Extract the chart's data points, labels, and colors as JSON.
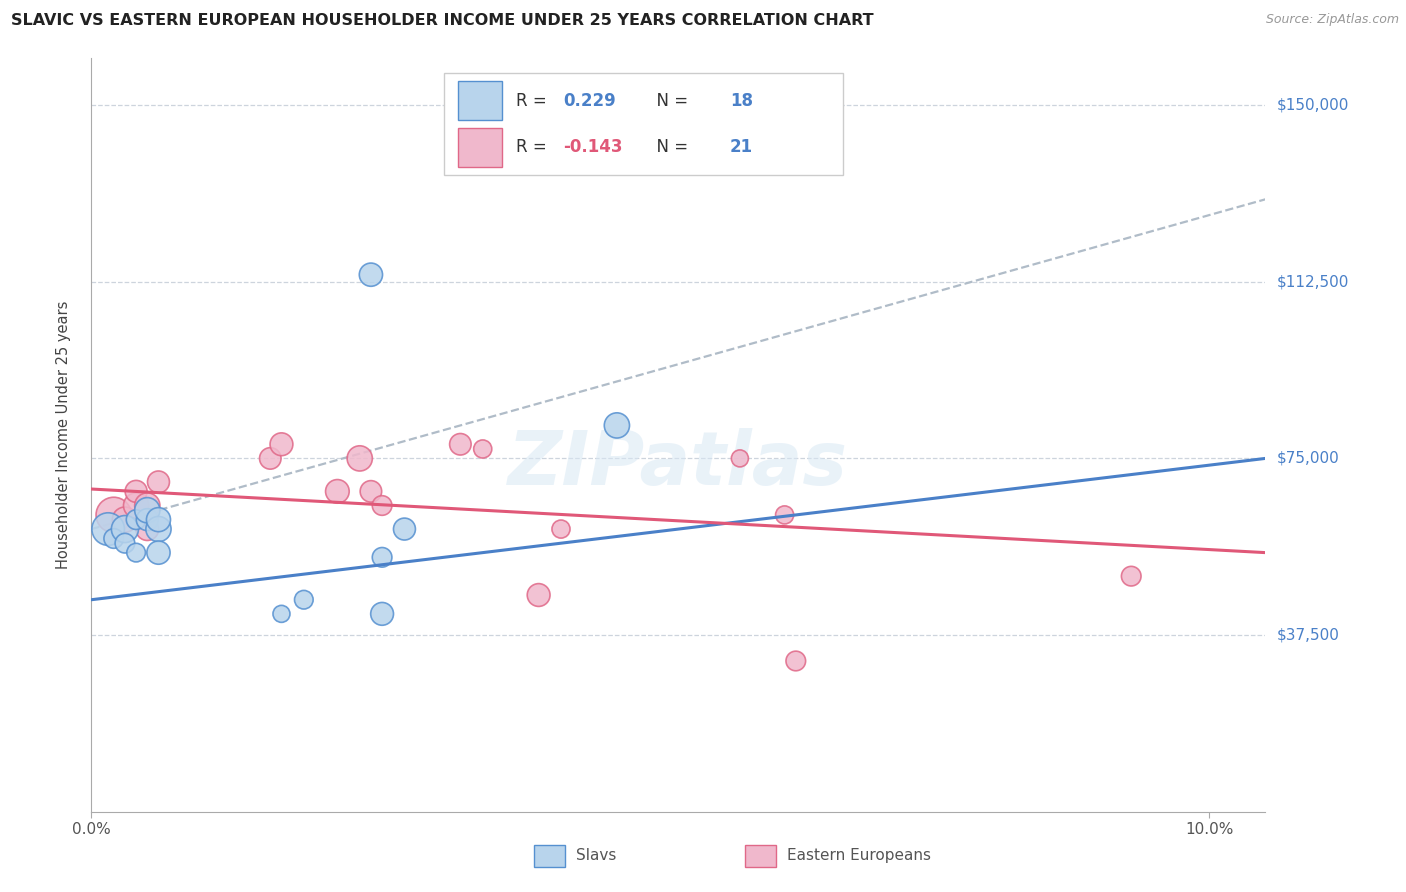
{
  "title": "SLAVIC VS EASTERN EUROPEAN HOUSEHOLDER INCOME UNDER 25 YEARS CORRELATION CHART",
  "source": "Source: ZipAtlas.com",
  "ylabel": "Householder Income Under 25 years",
  "xlim": [
    0.0,
    0.105
  ],
  "ylim": [
    0,
    160000
  ],
  "xtick_positions": [
    0.0,
    0.1
  ],
  "xtick_labels": [
    "0.0%",
    "10.0%"
  ],
  "ytick_values": [
    37500,
    75000,
    112500,
    150000
  ],
  "ytick_labels": [
    "$37,500",
    "$75,000",
    "$112,500",
    "$150,000"
  ],
  "r_slavs_val": "0.229",
  "n_slavs_val": "18",
  "r_eastern_val": "-0.143",
  "n_eastern_val": "21",
  "slavs_fill": "#b8d4ec",
  "slavs_edge": "#5590d0",
  "eastern_fill": "#f0b8cc",
  "eastern_edge": "#e06888",
  "slavs_line_color": "#4a80c8",
  "eastern_line_color": "#e05878",
  "dashed_line_color": "#b0bcc8",
  "watermark_color": "#d8e8f4",
  "slavs_line_x0": 0.0,
  "slavs_line_x1": 0.105,
  "slavs_line_y0": 45000,
  "slavs_line_y1": 75000,
  "eastern_line_x0": 0.0,
  "eastern_line_x1": 0.105,
  "eastern_line_y0": 68500,
  "eastern_line_y1": 55000,
  "dashed_line_x0": 0.0,
  "dashed_line_x1": 0.105,
  "dashed_line_y0": 60000,
  "dashed_line_y1": 130000,
  "slavs_x": [
    0.0015,
    0.002,
    0.003,
    0.003,
    0.004,
    0.004,
    0.005,
    0.005,
    0.006,
    0.006,
    0.006,
    0.017,
    0.019,
    0.025,
    0.026,
    0.026,
    0.028,
    0.047
  ],
  "slavs_y": [
    60000,
    58000,
    60000,
    57000,
    62000,
    55000,
    62000,
    64000,
    60000,
    62000,
    55000,
    42000,
    45000,
    114000,
    54000,
    42000,
    60000,
    82000
  ],
  "slavs_sizes": [
    550,
    200,
    380,
    200,
    200,
    180,
    250,
    330,
    330,
    300,
    280,
    150,
    180,
    280,
    200,
    270,
    250,
    330
  ],
  "eastern_x": [
    0.002,
    0.003,
    0.004,
    0.004,
    0.005,
    0.005,
    0.006,
    0.016,
    0.017,
    0.022,
    0.024,
    0.025,
    0.026,
    0.033,
    0.035,
    0.04,
    0.042,
    0.058,
    0.062,
    0.063,
    0.093
  ],
  "eastern_y": [
    63000,
    62000,
    65000,
    68000,
    60000,
    65000,
    70000,
    75000,
    78000,
    68000,
    75000,
    68000,
    65000,
    78000,
    77000,
    46000,
    60000,
    75000,
    63000,
    32000,
    50000
  ],
  "eastern_sizes": [
    650,
    330,
    330,
    250,
    270,
    330,
    250,
    240,
    270,
    290,
    330,
    240,
    200,
    240,
    170,
    270,
    170,
    150,
    170,
    200,
    200
  ],
  "legend_slavs": "Slavs",
  "legend_eastern": "Eastern Europeans"
}
